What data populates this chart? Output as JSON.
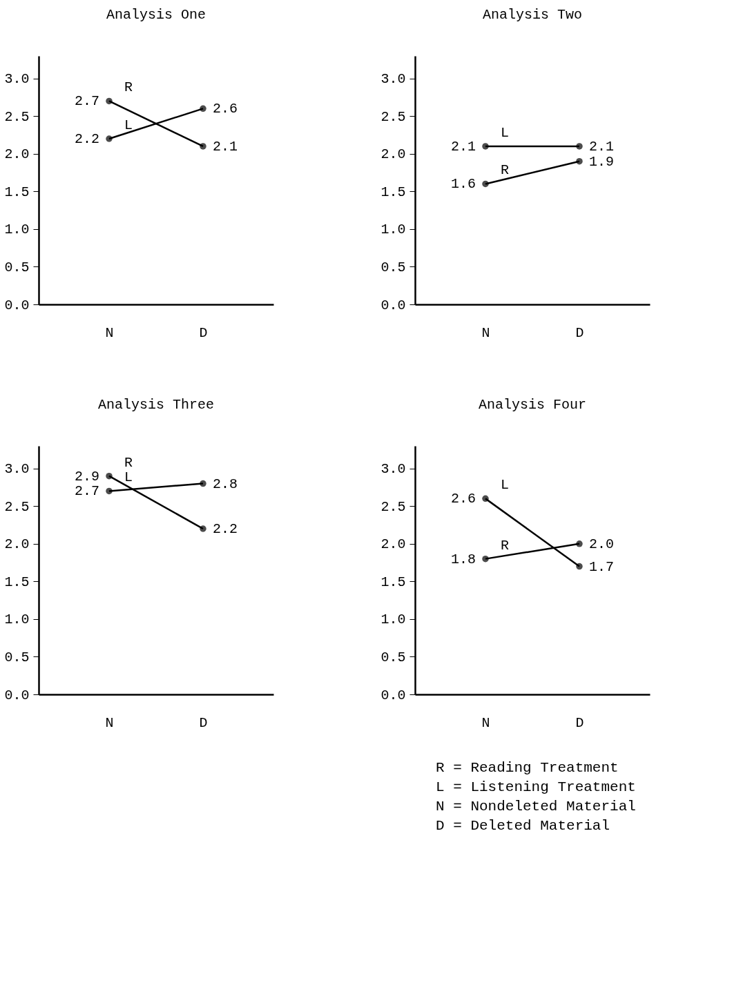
{
  "chart_data": [
    {
      "type": "line",
      "title": "Analysis One",
      "categories": [
        "N",
        "D"
      ],
      "ylim": [
        0,
        3.3
      ],
      "yticks": [
        {
          "value": 0,
          "label": "0.0"
        },
        {
          "value": 0.5,
          "label": "0.5"
        },
        {
          "value": 1,
          "label": "1.0"
        },
        {
          "value": 1.5,
          "label": "1.5"
        },
        {
          "value": 2,
          "label": "2.0"
        },
        {
          "value": 2.5,
          "label": "2.5"
        },
        {
          "value": 3,
          "label": "3.0"
        }
      ],
      "grid": false,
      "legend": false,
      "marker": "circle",
      "series": [
        {
          "name": "R",
          "color": "#000000",
          "values": [
            2.7,
            2.1
          ],
          "value_labels": [
            "2.7",
            "2.1"
          ]
        },
        {
          "name": "L",
          "color": "#000000",
          "values": [
            2.2,
            2.6
          ],
          "value_labels": [
            "2.2",
            "2.6"
          ]
        }
      ]
    },
    {
      "type": "line",
      "title": "Analysis Two",
      "categories": [
        "N",
        "D"
      ],
      "ylim": [
        0,
        3.3
      ],
      "yticks": [
        {
          "value": 0,
          "label": "0.0"
        },
        {
          "value": 0.5,
          "label": "0.5"
        },
        {
          "value": 1,
          "label": "1.0"
        },
        {
          "value": 1.5,
          "label": "1.5"
        },
        {
          "value": 2,
          "label": "2.0"
        },
        {
          "value": 2.5,
          "label": "2.5"
        },
        {
          "value": 3,
          "label": "3.0"
        }
      ],
      "grid": false,
      "legend": false,
      "marker": "circle",
      "series": [
        {
          "name": "L",
          "color": "#000000",
          "values": [
            2.1,
            2.1
          ],
          "value_labels": [
            "2.1",
            "2.1"
          ]
        },
        {
          "name": "R",
          "color": "#000000",
          "values": [
            1.6,
            1.9
          ],
          "value_labels": [
            "1.6",
            "1.9"
          ]
        }
      ]
    },
    {
      "type": "line",
      "title": "Analysis Three",
      "categories": [
        "N",
        "D"
      ],
      "ylim": [
        0,
        3.3
      ],
      "yticks": [
        {
          "value": 0,
          "label": "0.0"
        },
        {
          "value": 0.5,
          "label": "0.5"
        },
        {
          "value": 1,
          "label": "1.0"
        },
        {
          "value": 1.5,
          "label": "1.5"
        },
        {
          "value": 2,
          "label": "2.0"
        },
        {
          "value": 2.5,
          "label": "2.5"
        },
        {
          "value": 3,
          "label": "3.0"
        }
      ],
      "grid": false,
      "legend": false,
      "marker": "circle",
      "series": [
        {
          "name": "R",
          "color": "#000000",
          "values": [
            2.9,
            2.2
          ],
          "value_labels": [
            "2.9",
            "2.2"
          ]
        },
        {
          "name": "L",
          "color": "#000000",
          "values": [
            2.7,
            2.8
          ],
          "value_labels": [
            "2.7",
            "2.8"
          ]
        }
      ]
    },
    {
      "type": "line",
      "title": "Analysis Four",
      "categories": [
        "N",
        "D"
      ],
      "ylim": [
        0,
        3.3
      ],
      "yticks": [
        {
          "value": 0,
          "label": "0.0"
        },
        {
          "value": 0.5,
          "label": "0.5"
        },
        {
          "value": 1,
          "label": "1.0"
        },
        {
          "value": 1.5,
          "label": "1.5"
        },
        {
          "value": 2,
          "label": "2.0"
        },
        {
          "value": 2.5,
          "label": "2.5"
        },
        {
          "value": 3,
          "label": "3.0"
        }
      ],
      "grid": false,
      "legend": false,
      "marker": "circle",
      "series": [
        {
          "name": "L",
          "color": "#000000",
          "values": [
            2.6,
            1.7
          ],
          "value_labels": [
            "2.6",
            "1.7"
          ]
        },
        {
          "name": "R",
          "color": "#000000",
          "values": [
            1.8,
            2.0
          ],
          "value_labels": [
            "1.8",
            "2.0"
          ]
        }
      ],
      "annotations": [
        "R = Reading Treatment",
        "L = Listening Treatment",
        "N = Nondeleted Material",
        "D = Deleted Material"
      ]
    }
  ]
}
